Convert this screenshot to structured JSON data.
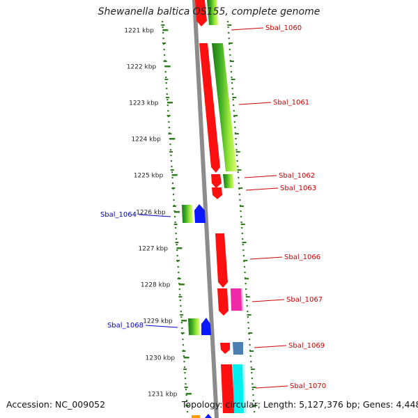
{
  "title": "Shewanella baltica OS155, complete genome",
  "accession_text": "Accession: NC_009052",
  "summary_text": "Topology: circular; Length: 5,127,376 bp; Genes: 4,448",
  "colors": {
    "backbone": "#8c8c8c",
    "tick": "#2f7d1f",
    "label_right": "#cc0000",
    "label_left": "#0000cc"
  },
  "scale": [
    {
      "label": "1221 kbp"
    },
    {
      "label": "1222 kbp"
    },
    {
      "label": "1223 kbp"
    },
    {
      "label": "1224 kbp"
    },
    {
      "label": "1225 kbp"
    },
    {
      "label": "1226 kbp"
    },
    {
      "label": "1227 kbp"
    },
    {
      "label": "1228 kbp"
    },
    {
      "label": "1229 kbp"
    },
    {
      "label": "1230 kbp"
    },
    {
      "label": "1231 kbp"
    }
  ],
  "genes": [
    {
      "name": "Sbal_1060",
      "strand": "right",
      "labeled": true
    },
    {
      "name": "Sbal_1061",
      "strand": "right",
      "labeled": true
    },
    {
      "name": "Sbal_1062",
      "strand": "right",
      "labeled": true
    },
    {
      "name": "Sbal_1063",
      "strand": "right",
      "labeled": true
    },
    {
      "name": "Sbal_1064",
      "strand": "left",
      "labeled": true
    },
    {
      "name": "Sbal_1066",
      "strand": "right",
      "labeled": true
    },
    {
      "name": "Sbal_1067",
      "strand": "right",
      "labeled": true
    },
    {
      "name": "Sbal_1068",
      "strand": "left",
      "labeled": true
    },
    {
      "name": "Sbal_1069",
      "strand": "right",
      "labeled": true
    },
    {
      "name": "Sbal_1070",
      "strand": "right",
      "labeled": true
    }
  ]
}
